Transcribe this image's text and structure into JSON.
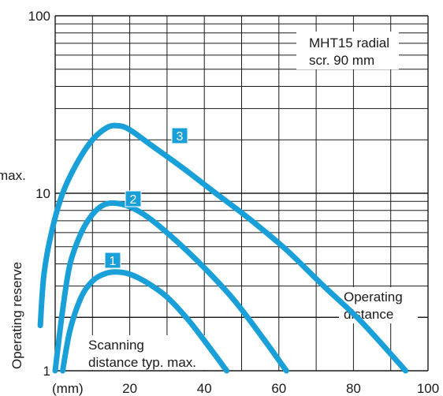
{
  "chart_data": {
    "type": "line",
    "title": "",
    "ylabel": "Operating reserve",
    "ylabel_max_fragment": "max.",
    "xunit_label": "(mm)",
    "xlim": [
      0,
      100
    ],
    "ylim": [
      1,
      100
    ],
    "yscale": "log",
    "x_ticks": [
      20,
      40,
      60,
      80,
      100
    ],
    "y_ticks": [
      1,
      10,
      100
    ],
    "grid": true,
    "colors": {
      "curve": "#1aa0d8",
      "grid": "#1a1a1a",
      "marker_fill": "#1aa0d8"
    },
    "series": [
      {
        "name": "1",
        "x": [
          2,
          4,
          7,
          10,
          13,
          16,
          20,
          25,
          30,
          36,
          42,
          46
        ],
        "y": [
          1.0,
          1.7,
          2.6,
          3.2,
          3.5,
          3.6,
          3.5,
          3.1,
          2.6,
          1.9,
          1.3,
          1.0
        ]
      },
      {
        "name": "2",
        "x": [
          0,
          2,
          4,
          7,
          10,
          13,
          16,
          20,
          25,
          32,
          40,
          48,
          56,
          62
        ],
        "y": [
          1.0,
          2.2,
          4.0,
          6.0,
          7.6,
          8.6,
          8.8,
          8.4,
          7.3,
          5.5,
          3.8,
          2.5,
          1.5,
          1.0
        ]
      },
      {
        "name": "3",
        "x": [
          -4,
          -3,
          -1,
          2,
          6,
          10,
          14,
          17,
          20,
          26,
          34,
          42,
          52,
          62,
          72,
          82,
          94
        ],
        "y": [
          1.8,
          3.5,
          6.0,
          10.0,
          15.0,
          20.0,
          23.5,
          24.0,
          22.8,
          18.5,
          14.0,
          10.4,
          7.2,
          4.8,
          3.0,
          1.9,
          1.0
        ]
      }
    ],
    "markers": [
      "1",
      "2",
      "3"
    ],
    "annotations": {
      "legend_line1": "MHT15 radial",
      "legend_line2": "scr. 90 mm",
      "operating_line1": "Operating",
      "operating_line2": "distance",
      "scanning_line1": "Scanning",
      "scanning_line2": "distance typ. max."
    }
  }
}
